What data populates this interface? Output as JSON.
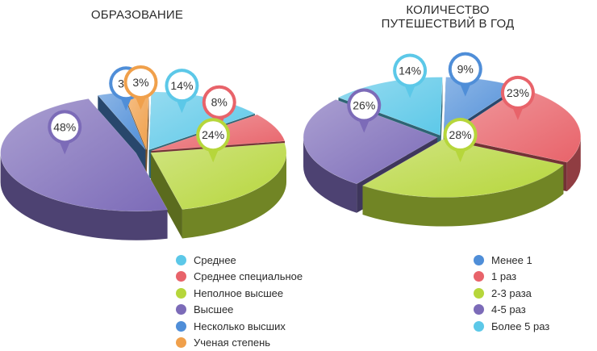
{
  "chart_data": [
    {
      "type": "pie",
      "title": "ОБРАЗОВАНИЕ",
      "slices": [
        {
          "label": "Среднее",
          "value": 14,
          "color": "#5cc8e8"
        },
        {
          "label": "Среднее специальное",
          "value": 8,
          "color": "#e8636a"
        },
        {
          "label": "Неполное высшее",
          "value": 24,
          "color": "#b6d63b"
        },
        {
          "label": "Высшее",
          "value": 48,
          "color": "#7c6bb8"
        },
        {
          "label": "Несколько высших",
          "value": 3,
          "color": "#4f8ed8"
        },
        {
          "label": "Ученая степень",
          "value": 3,
          "color": "#f0a04b"
        }
      ],
      "legend_position": "bottom-center"
    },
    {
      "type": "pie",
      "title": "КОЛИЧЕСТВО ПУТЕШЕСТВИЙ В ГОД",
      "slices": [
        {
          "label": "Менее 1",
          "value": 9,
          "color": "#4f8ed8"
        },
        {
          "label": "1 раз",
          "value": 23,
          "color": "#e8636a"
        },
        {
          "label": "2-3 раза",
          "value": 28,
          "color": "#b6d63b"
        },
        {
          "label": "4-5 раз",
          "value": 26,
          "color": "#7c6bb8"
        },
        {
          "label": "Более 5 раз",
          "value": 14,
          "color": "#5cc8e8"
        }
      ],
      "legend_position": "bottom-right"
    }
  ]
}
